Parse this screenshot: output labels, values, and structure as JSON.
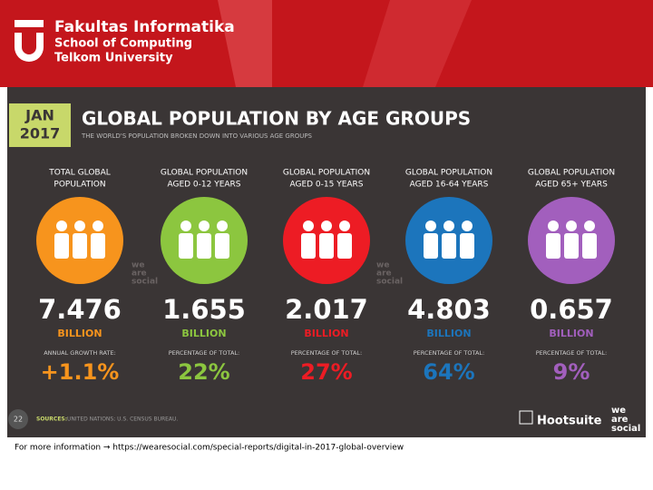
{
  "header": {
    "faculty": "Fakultas Informatika",
    "school": "School of Computing",
    "university": "Telkom University"
  },
  "slide": {
    "date_month": "JAN",
    "date_year": "2017",
    "title": "GLOBAL POPULATION BY AGE GROUPS",
    "subtitle": "THE WORLD'S POPULATION BROKEN DOWN INTO VARIOUS AGE GROUPS",
    "columns": [
      {
        "heading": [
          "TOTAL GLOBAL",
          "POPULATION"
        ],
        "value": "7.476",
        "unit": "BILLION",
        "stat_label": "ANNUAL GROWTH RATE:",
        "stat": "+1.1%",
        "color": "#f7941d"
      },
      {
        "heading": [
          "GLOBAL POPULATION",
          "AGED 0-12 YEARS"
        ],
        "value": "1.655",
        "unit": "BILLION",
        "stat_label": "PERCENTAGE OF TOTAL:",
        "stat": "22%",
        "color": "#8cc63f"
      },
      {
        "heading": [
          "GLOBAL POPULATION",
          "AGED 0-15 YEARS"
        ],
        "value": "2.017",
        "unit": "BILLION",
        "stat_label": "PERCENTAGE OF TOTAL:",
        "stat": "27%",
        "color": "#ed1c24"
      },
      {
        "heading": [
          "GLOBAL POPULATION",
          "AGED 16-64 YEARS"
        ],
        "value": "4.803",
        "unit": "BILLION",
        "stat_label": "PERCENTAGE OF TOTAL:",
        "stat": "64%",
        "color": "#1c75bc"
      },
      {
        "heading": [
          "GLOBAL POPULATION",
          "AGED 65+ YEARS"
        ],
        "value": "0.657",
        "unit": "BILLION",
        "stat_label": "PERCENTAGE OF TOTAL:",
        "stat": "9%",
        "color": "#a25fbd"
      }
    ],
    "watermarks": [
      [
        "we",
        "are",
        "social"
      ],
      [
        "we",
        "are",
        "social"
      ]
    ],
    "page_number": "22",
    "sources_label": "SOURCES:",
    "sources": "UNITED NATIONS; U.S. CENSUS BUREAU.",
    "brand": "Hootsuite",
    "partner": [
      "we",
      "are",
      "social"
    ]
  },
  "footer": {
    "text": "For more information → https://wearesocial.com/special-reports/digital-in-2017-global-overview"
  }
}
